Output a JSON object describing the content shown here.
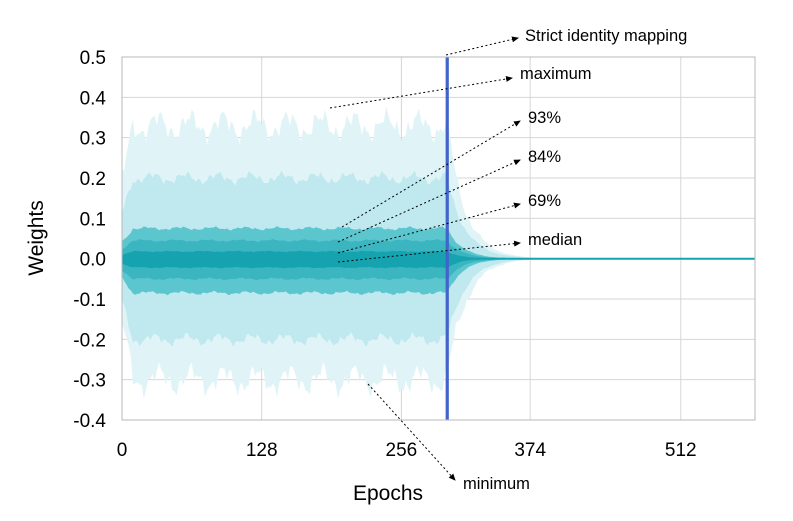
{
  "chart_data": {
    "type": "area",
    "xlabel": "Epochs",
    "ylabel": "Weights",
    "xlim": [
      0,
      580
    ],
    "ylim": [
      -0.4,
      0.5
    ],
    "xticks": [
      0,
      128,
      256,
      374,
      512
    ],
    "xtick_labels": [
      "0",
      "128",
      "256",
      "374",
      "512"
    ],
    "yticks": [
      0.5,
      0.4,
      0.3,
      0.2,
      0.1,
      0.0,
      -0.1,
      -0.2,
      -0.3,
      -0.4
    ],
    "ytick_labels": [
      "0.5",
      "0.4",
      "0.3",
      "0.2",
      "0.1",
      "0.0",
      "-0.1",
      "-0.2",
      "-0.3",
      "-0.4"
    ],
    "grid": true,
    "colors": {
      "band_max": "#e0f4f8",
      "band_93": "#bfe8ef",
      "band_84": "#5cc6cf",
      "band_69": "#3bb5c0",
      "median": "#16a3b0",
      "identity_line": "#4263c9",
      "grid": "#d6d6d6"
    },
    "identity_epoch": 298,
    "bands": [
      {
        "name": "maximum",
        "upper": 0.33,
        "lower": -0.3
      },
      {
        "name": "93%",
        "upper": 0.2,
        "lower": -0.2
      },
      {
        "name": "84%",
        "upper": 0.075,
        "lower": -0.085
      },
      {
        "name": "69%",
        "upper": 0.045,
        "lower": -0.05
      },
      {
        "name": "median",
        "upper": 0.018,
        "lower": -0.022
      }
    ],
    "median_value": 0.0,
    "annotations": [
      {
        "id": "identity",
        "text": "Strict identity mapping"
      },
      {
        "id": "maximum",
        "text": "maximum"
      },
      {
        "id": "p93",
        "text": "93%"
      },
      {
        "id": "p84",
        "text": "84%"
      },
      {
        "id": "p69",
        "text": "69%"
      },
      {
        "id": "median",
        "text": "median"
      },
      {
        "id": "minimum",
        "text": "minimum"
      }
    ]
  }
}
